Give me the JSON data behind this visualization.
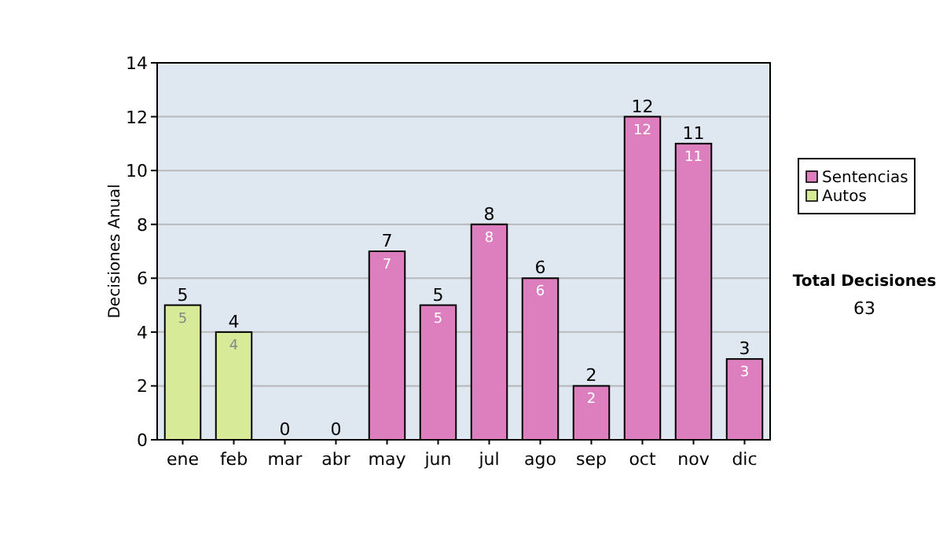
{
  "chart_data": {
    "type": "bar",
    "ylabel": "Decisiones Anual",
    "categories": [
      "ene",
      "feb",
      "mar",
      "abr",
      "may",
      "jun",
      "jul",
      "ago",
      "sep",
      "oct",
      "nov",
      "dic"
    ],
    "stacked": true,
    "series": [
      {
        "name": "Sentencias",
        "color": "#dd7fbe",
        "values": [
          null,
          null,
          0,
          0,
          7,
          5,
          8,
          6,
          2,
          12,
          11,
          3
        ],
        "value_labels": [
          null,
          null,
          null,
          null,
          "7",
          "5",
          "8",
          "6",
          "2",
          "12",
          "11",
          "3"
        ]
      },
      {
        "name": "Autos",
        "color": "#d6ea98",
        "values": [
          5,
          4,
          null,
          null,
          null,
          null,
          null,
          null,
          null,
          null,
          null,
          null
        ],
        "value_labels": [
          "5",
          "4",
          null,
          null,
          null,
          null,
          null,
          null,
          null,
          null,
          null,
          null
        ]
      }
    ],
    "totals": [
      "5",
      "4",
      "0",
      "0",
      "7",
      "5",
      "8",
      "6",
      "2",
      "12",
      "11",
      "3"
    ],
    "ylim": [
      0,
      14
    ],
    "yticks": [
      0,
      2,
      4,
      6,
      8,
      10,
      12,
      14
    ],
    "grid": "y",
    "legend": "right",
    "annotations": [
      "Total Decisiones",
      "63"
    ]
  }
}
